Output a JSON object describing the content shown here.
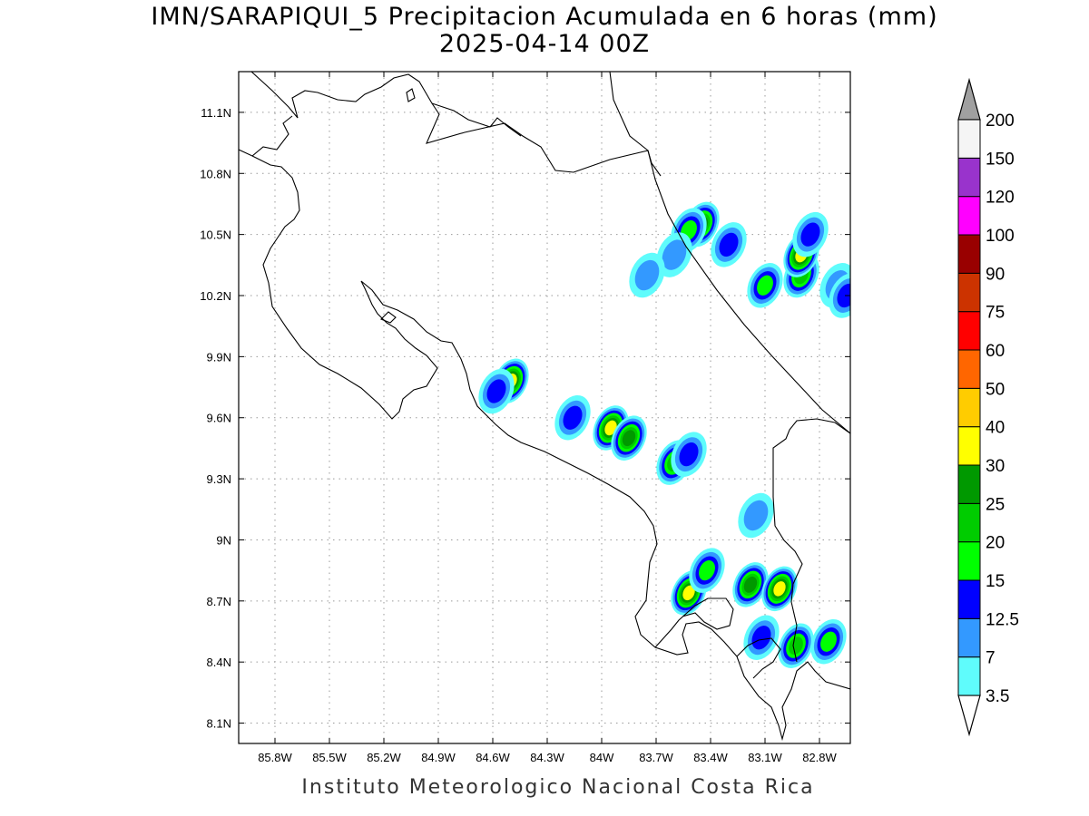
{
  "title": {
    "line1": "IMN/SARAPIQUI_5 Precipitacion Acumulada en 6 horas (mm)",
    "line2": "2025-04-14 00Z"
  },
  "credit": "Instituto Meteorologico Nacional Costa Rica",
  "map": {
    "lon_range": [
      -86.0,
      -82.63
    ],
    "lat_range": [
      8.0,
      11.3
    ],
    "lon_ticks": [
      {
        "value": -85.8,
        "label": "85.8W"
      },
      {
        "value": -85.5,
        "label": "85.5W"
      },
      {
        "value": -85.2,
        "label": "85.2W"
      },
      {
        "value": -84.9,
        "label": "84.9W"
      },
      {
        "value": -84.6,
        "label": "84.6W"
      },
      {
        "value": -84.3,
        "label": "84.3W"
      },
      {
        "value": -84.0,
        "label": "84W"
      },
      {
        "value": -83.7,
        "label": "83.7W"
      },
      {
        "value": -83.4,
        "label": "83.4W"
      },
      {
        "value": -83.1,
        "label": "83.1W"
      },
      {
        "value": -82.8,
        "label": "82.8W"
      }
    ],
    "lat_ticks": [
      {
        "value": 8.1,
        "label": "8.1N"
      },
      {
        "value": 8.4,
        "label": "8.4N"
      },
      {
        "value": 8.7,
        "label": "8.7N"
      },
      {
        "value": 9.0,
        "label": "9N"
      },
      {
        "value": 9.3,
        "label": "9.3N"
      },
      {
        "value": 9.6,
        "label": "9.6N"
      },
      {
        "value": 9.9,
        "label": "9.9N"
      },
      {
        "value": 10.2,
        "label": "10.2N"
      },
      {
        "value": 10.5,
        "label": "10.5N"
      },
      {
        "value": 10.8,
        "label": "10.8N"
      },
      {
        "value": 11.1,
        "label": "11.1N"
      }
    ],
    "grid": "dotted",
    "precip_cells": [
      {
        "lon": -83.45,
        "lat": 10.55,
        "level": 25
      },
      {
        "lon": -83.52,
        "lat": 10.52,
        "level": 15
      },
      {
        "lon": -83.6,
        "lat": 10.4,
        "level": 7
      },
      {
        "lon": -83.75,
        "lat": 10.3,
        "level": 7
      },
      {
        "lon": -83.3,
        "lat": 10.45,
        "level": 12.5
      },
      {
        "lon": -83.1,
        "lat": 10.25,
        "level": 15
      },
      {
        "lon": -82.9,
        "lat": 10.3,
        "level": 20
      },
      {
        "lon": -82.9,
        "lat": 10.4,
        "level": 30
      },
      {
        "lon": -82.85,
        "lat": 10.5,
        "level": 12.5
      },
      {
        "lon": -82.7,
        "lat": 10.25,
        "level": 7
      },
      {
        "lon": -82.65,
        "lat": 10.2,
        "level": 12.5
      },
      {
        "lon": -84.5,
        "lat": 9.78,
        "level": 30
      },
      {
        "lon": -84.58,
        "lat": 9.73,
        "level": 12.5
      },
      {
        "lon": -84.16,
        "lat": 9.6,
        "level": 12.5
      },
      {
        "lon": -83.95,
        "lat": 9.55,
        "level": 30
      },
      {
        "lon": -83.85,
        "lat": 9.5,
        "level": 25
      },
      {
        "lon": -83.6,
        "lat": 9.38,
        "level": 20
      },
      {
        "lon": -83.52,
        "lat": 9.42,
        "level": 12.5
      },
      {
        "lon": -83.15,
        "lat": 9.12,
        "level": 7
      },
      {
        "lon": -83.52,
        "lat": 8.74,
        "level": 30
      },
      {
        "lon": -83.42,
        "lat": 8.85,
        "level": 15
      },
      {
        "lon": -83.18,
        "lat": 8.78,
        "level": 25
      },
      {
        "lon": -83.02,
        "lat": 8.76,
        "level": 30
      },
      {
        "lon": -83.12,
        "lat": 8.52,
        "level": 12.5
      },
      {
        "lon": -82.93,
        "lat": 8.48,
        "level": 20
      },
      {
        "lon": -82.75,
        "lat": 8.5,
        "level": 15
      }
    ]
  },
  "colorbar": {
    "levels": [
      {
        "label": "3.5",
        "color": "#5ffcfc"
      },
      {
        "label": "7",
        "color": "#3399ff"
      },
      {
        "label": "12.5",
        "color": "#0000ff"
      },
      {
        "label": "15",
        "color": "#00ff00"
      },
      {
        "label": "20",
        "color": "#00cc00"
      },
      {
        "label": "25",
        "color": "#009900"
      },
      {
        "label": "30",
        "color": "#ffff00"
      },
      {
        "label": "40",
        "color": "#ffcc00"
      },
      {
        "label": "50",
        "color": "#ff6600"
      },
      {
        "label": "60",
        "color": "#ff0000"
      },
      {
        "label": "75",
        "color": "#cc3300"
      },
      {
        "label": "90",
        "color": "#990000"
      },
      {
        "label": "100",
        "color": "#ff00ff"
      },
      {
        "label": "120",
        "color": "#9933cc"
      },
      {
        "label": "150",
        "color": "#f5f5f5"
      },
      {
        "label": "200",
        "color": null
      }
    ],
    "top_arrow_color": "#a0a0a0",
    "bottom_arrow_color": "#ffffff"
  }
}
